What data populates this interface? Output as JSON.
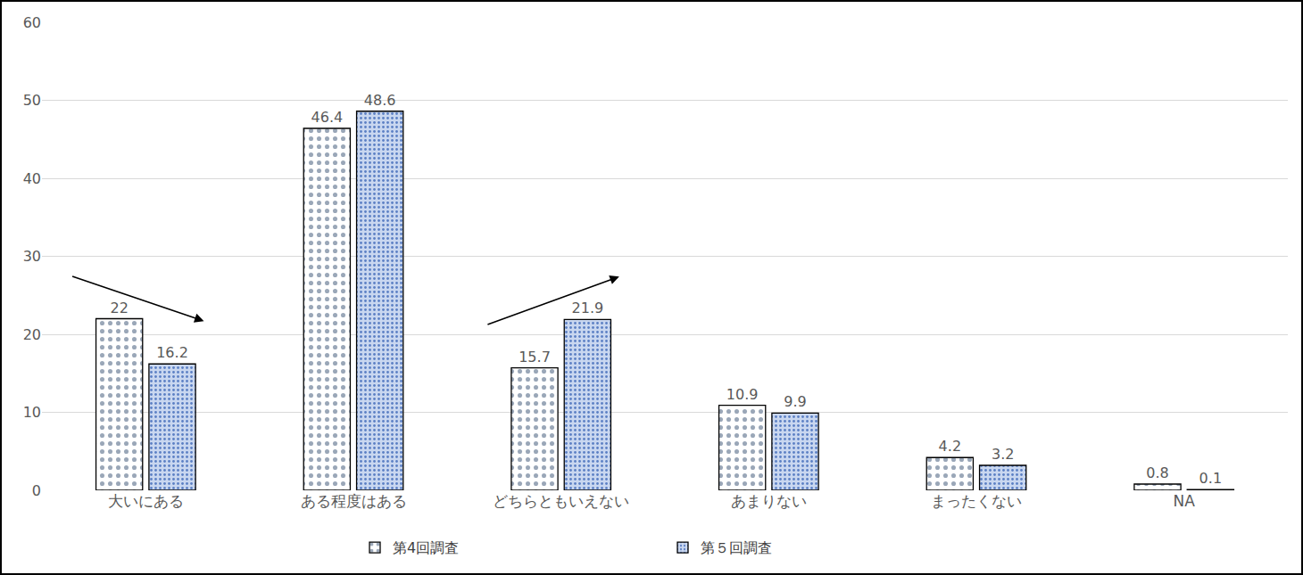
{
  "chart_data": {
    "type": "bar",
    "categories": [
      "大いにある",
      "ある程度はある",
      "どちらともいえない",
      "あまりない",
      "まったくない",
      "NA"
    ],
    "series": [
      {
        "name": "第4回調査",
        "color": "#ffffff",
        "values": [
          22,
          46.4,
          15.7,
          10.9,
          4.2,
          0.8
        ]
      },
      {
        "name": "第５回調査",
        "color": "#c9d7f0",
        "values": [
          16.2,
          48.6,
          21.9,
          9.9,
          3.2,
          0.1
        ]
      }
    ],
    "ylim": [
      0,
      60
    ],
    "yticks": [
      0,
      10,
      20,
      30,
      40,
      50,
      60
    ],
    "grid": true,
    "legend": "bottom",
    "data_labels": true
  }
}
